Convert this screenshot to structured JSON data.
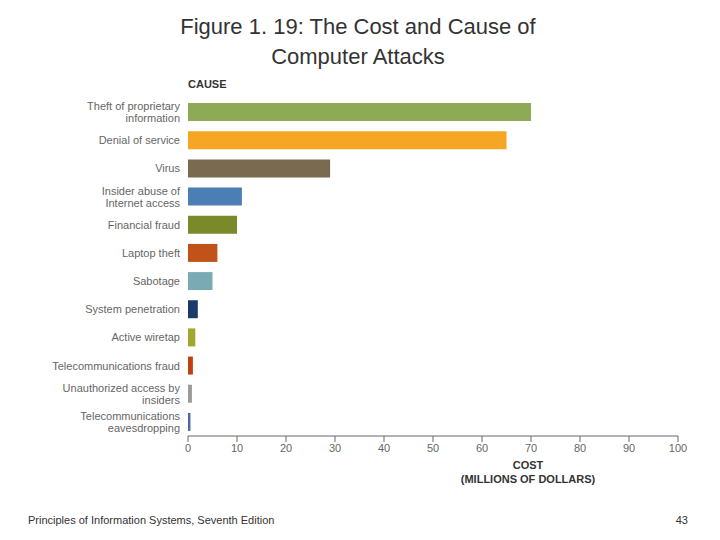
{
  "chart_data": {
    "type": "bar",
    "orientation": "horizontal",
    "title": "Figure 1. 19: The Cost and Cause of\nComputer Attacks",
    "y_label": "CAUSE",
    "x_label": "COST\n(MILLIONS OF DOLLARS)",
    "annotations": [
      "Principles of Information Systems, Seventh Edition",
      "43"
    ],
    "categories": [
      "Theft of proprietary\ninformation",
      "Denial of service",
      "Virus",
      "Insider abuse of\nInternet access",
      "Financial fraud",
      "Laptop theft",
      "Sabotage",
      "System penetration",
      "Active wiretap",
      "Telecommunications fraud",
      "Unauthorized access by\ninsiders",
      "Telecommunications\neavesdropping"
    ],
    "values": [
      70,
      65,
      29,
      11,
      10,
      6,
      5,
      2,
      1.5,
      1,
      0.8,
      0.5
    ],
    "colors": [
      "#8faa56",
      "#f5a623",
      "#7a6a50",
      "#4a7eb5",
      "#7a8a2a",
      "#c0521a",
      "#7aabb5",
      "#1a3a6a",
      "#a0a832",
      "#c04010",
      "#9a9a9a",
      "#4a6a9a"
    ],
    "xlim": [
      0,
      100
    ],
    "xticks": [
      0,
      10,
      20,
      30,
      40,
      50,
      60,
      70,
      80,
      90,
      100
    ],
    "grid": false
  }
}
